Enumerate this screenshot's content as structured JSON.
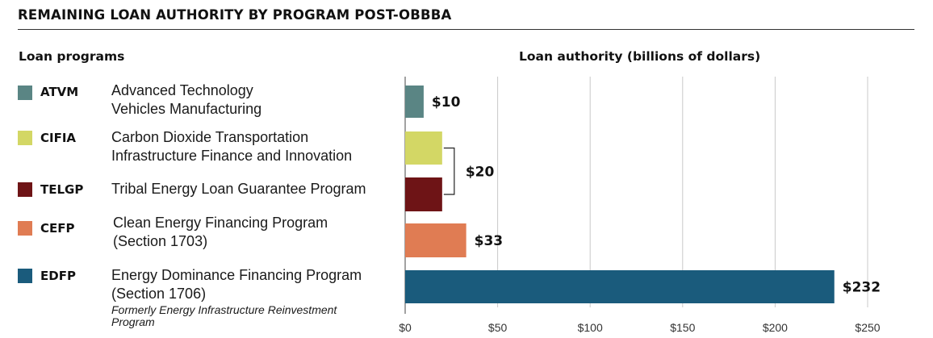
{
  "title": "REMAINING LOAN AUTHORITY BY PROGRAM POST-OBBBA",
  "column_headers": {
    "programs": "Loan programs",
    "authority": "Loan authority (billions of dollars)"
  },
  "programs": [
    {
      "abbr": "ATVM",
      "name_lines": [
        "Advanced Technology",
        "Vehicles Manufacturing"
      ],
      "color": "#5a8584"
    },
    {
      "abbr": "CIFIA",
      "name_lines": [
        "Carbon Dioxide Transportation",
        "Infrastructure Finance and Innovation"
      ],
      "color": "#d3d765"
    },
    {
      "abbr": "TELGP",
      "name_lines": [
        "Tribal Energy Loan Guarantee Program"
      ],
      "color": "#6e1416"
    },
    {
      "abbr": "CEFP",
      "name_lines": [
        "Clean Energy Financing Program",
        "(Section 1703)"
      ],
      "color": "#e07c53"
    },
    {
      "abbr": "EDFP",
      "name_lines": [
        "Energy Dominance Financing Program",
        "(Section 1706)"
      ],
      "note_lines": [
        "Formerly Energy Infrastructure Reinvestment",
        "Program"
      ],
      "color": "#1a5b7c"
    }
  ],
  "chart_data": {
    "type": "bar",
    "orientation": "horizontal",
    "xlabel": "Loan authority (billions of dollars)",
    "categories": [
      "ATVM",
      "CIFIA",
      "TELGP",
      "CEFP",
      "EDFP"
    ],
    "values": [
      10,
      20,
      20,
      33,
      232
    ],
    "xlim": [
      0,
      250
    ],
    "tick_values": [
      0,
      50,
      100,
      150,
      200,
      250
    ],
    "tick_labels": [
      "$0",
      "$50",
      "$100",
      "$150",
      "$200",
      "$250"
    ],
    "data_labels": [
      {
        "text": "$10",
        "bars": [
          0
        ]
      },
      {
        "text": "$20",
        "bars": [
          1,
          2
        ],
        "bracket": true
      },
      {
        "text": "$33",
        "bars": [
          3
        ]
      },
      {
        "text": "$232",
        "bars": [
          4
        ]
      }
    ],
    "grid": true,
    "colors": [
      "#5a8584",
      "#d3d765",
      "#6e1416",
      "#e07c53",
      "#1a5b7c"
    ]
  }
}
